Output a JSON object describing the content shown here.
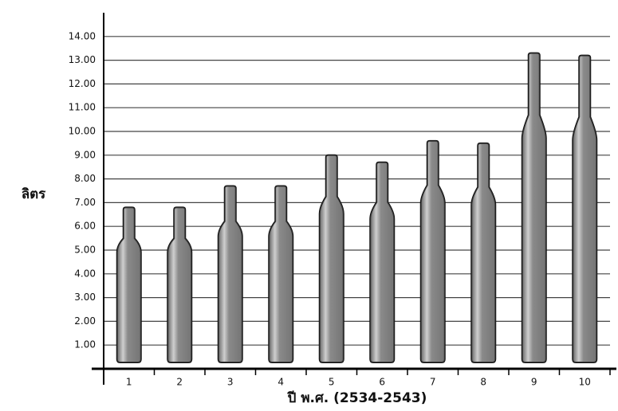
{
  "chart_data": {
    "type": "bottle",
    "categories": [
      "1",
      "2",
      "3",
      "4",
      "5",
      "6",
      "7",
      "8",
      "9",
      "10"
    ],
    "values": [
      6.8,
      6.8,
      7.7,
      7.7,
      9.0,
      8.7,
      9.6,
      9.5,
      13.3,
      13.2
    ],
    "color": "#8a8a8a",
    "x_label": "ปี พ.ศ. (2534-2543)",
    "y_label": "ลิตร",
    "ylim": [
      0,
      15
    ],
    "yticks": [
      {
        "value": 1,
        "label": "1.00"
      },
      {
        "value": 2,
        "label": "2.00"
      },
      {
        "value": 3,
        "label": "3.00"
      },
      {
        "value": 4,
        "label": "4.00"
      },
      {
        "value": 5,
        "label": "5.00"
      },
      {
        "value": 6,
        "label": "6.00"
      },
      {
        "value": 7,
        "label": "7.00"
      },
      {
        "value": 8,
        "label": "8.00"
      },
      {
        "value": 9,
        "label": "9.00"
      },
      {
        "value": 10,
        "label": "10.00"
      },
      {
        "value": 11,
        "label": "11.00"
      },
      {
        "value": 12,
        "label": "12.00"
      },
      {
        "value": 13,
        "label": "13.00"
      },
      {
        "value": 14,
        "label": "14.00"
      }
    ],
    "grid": true
  }
}
